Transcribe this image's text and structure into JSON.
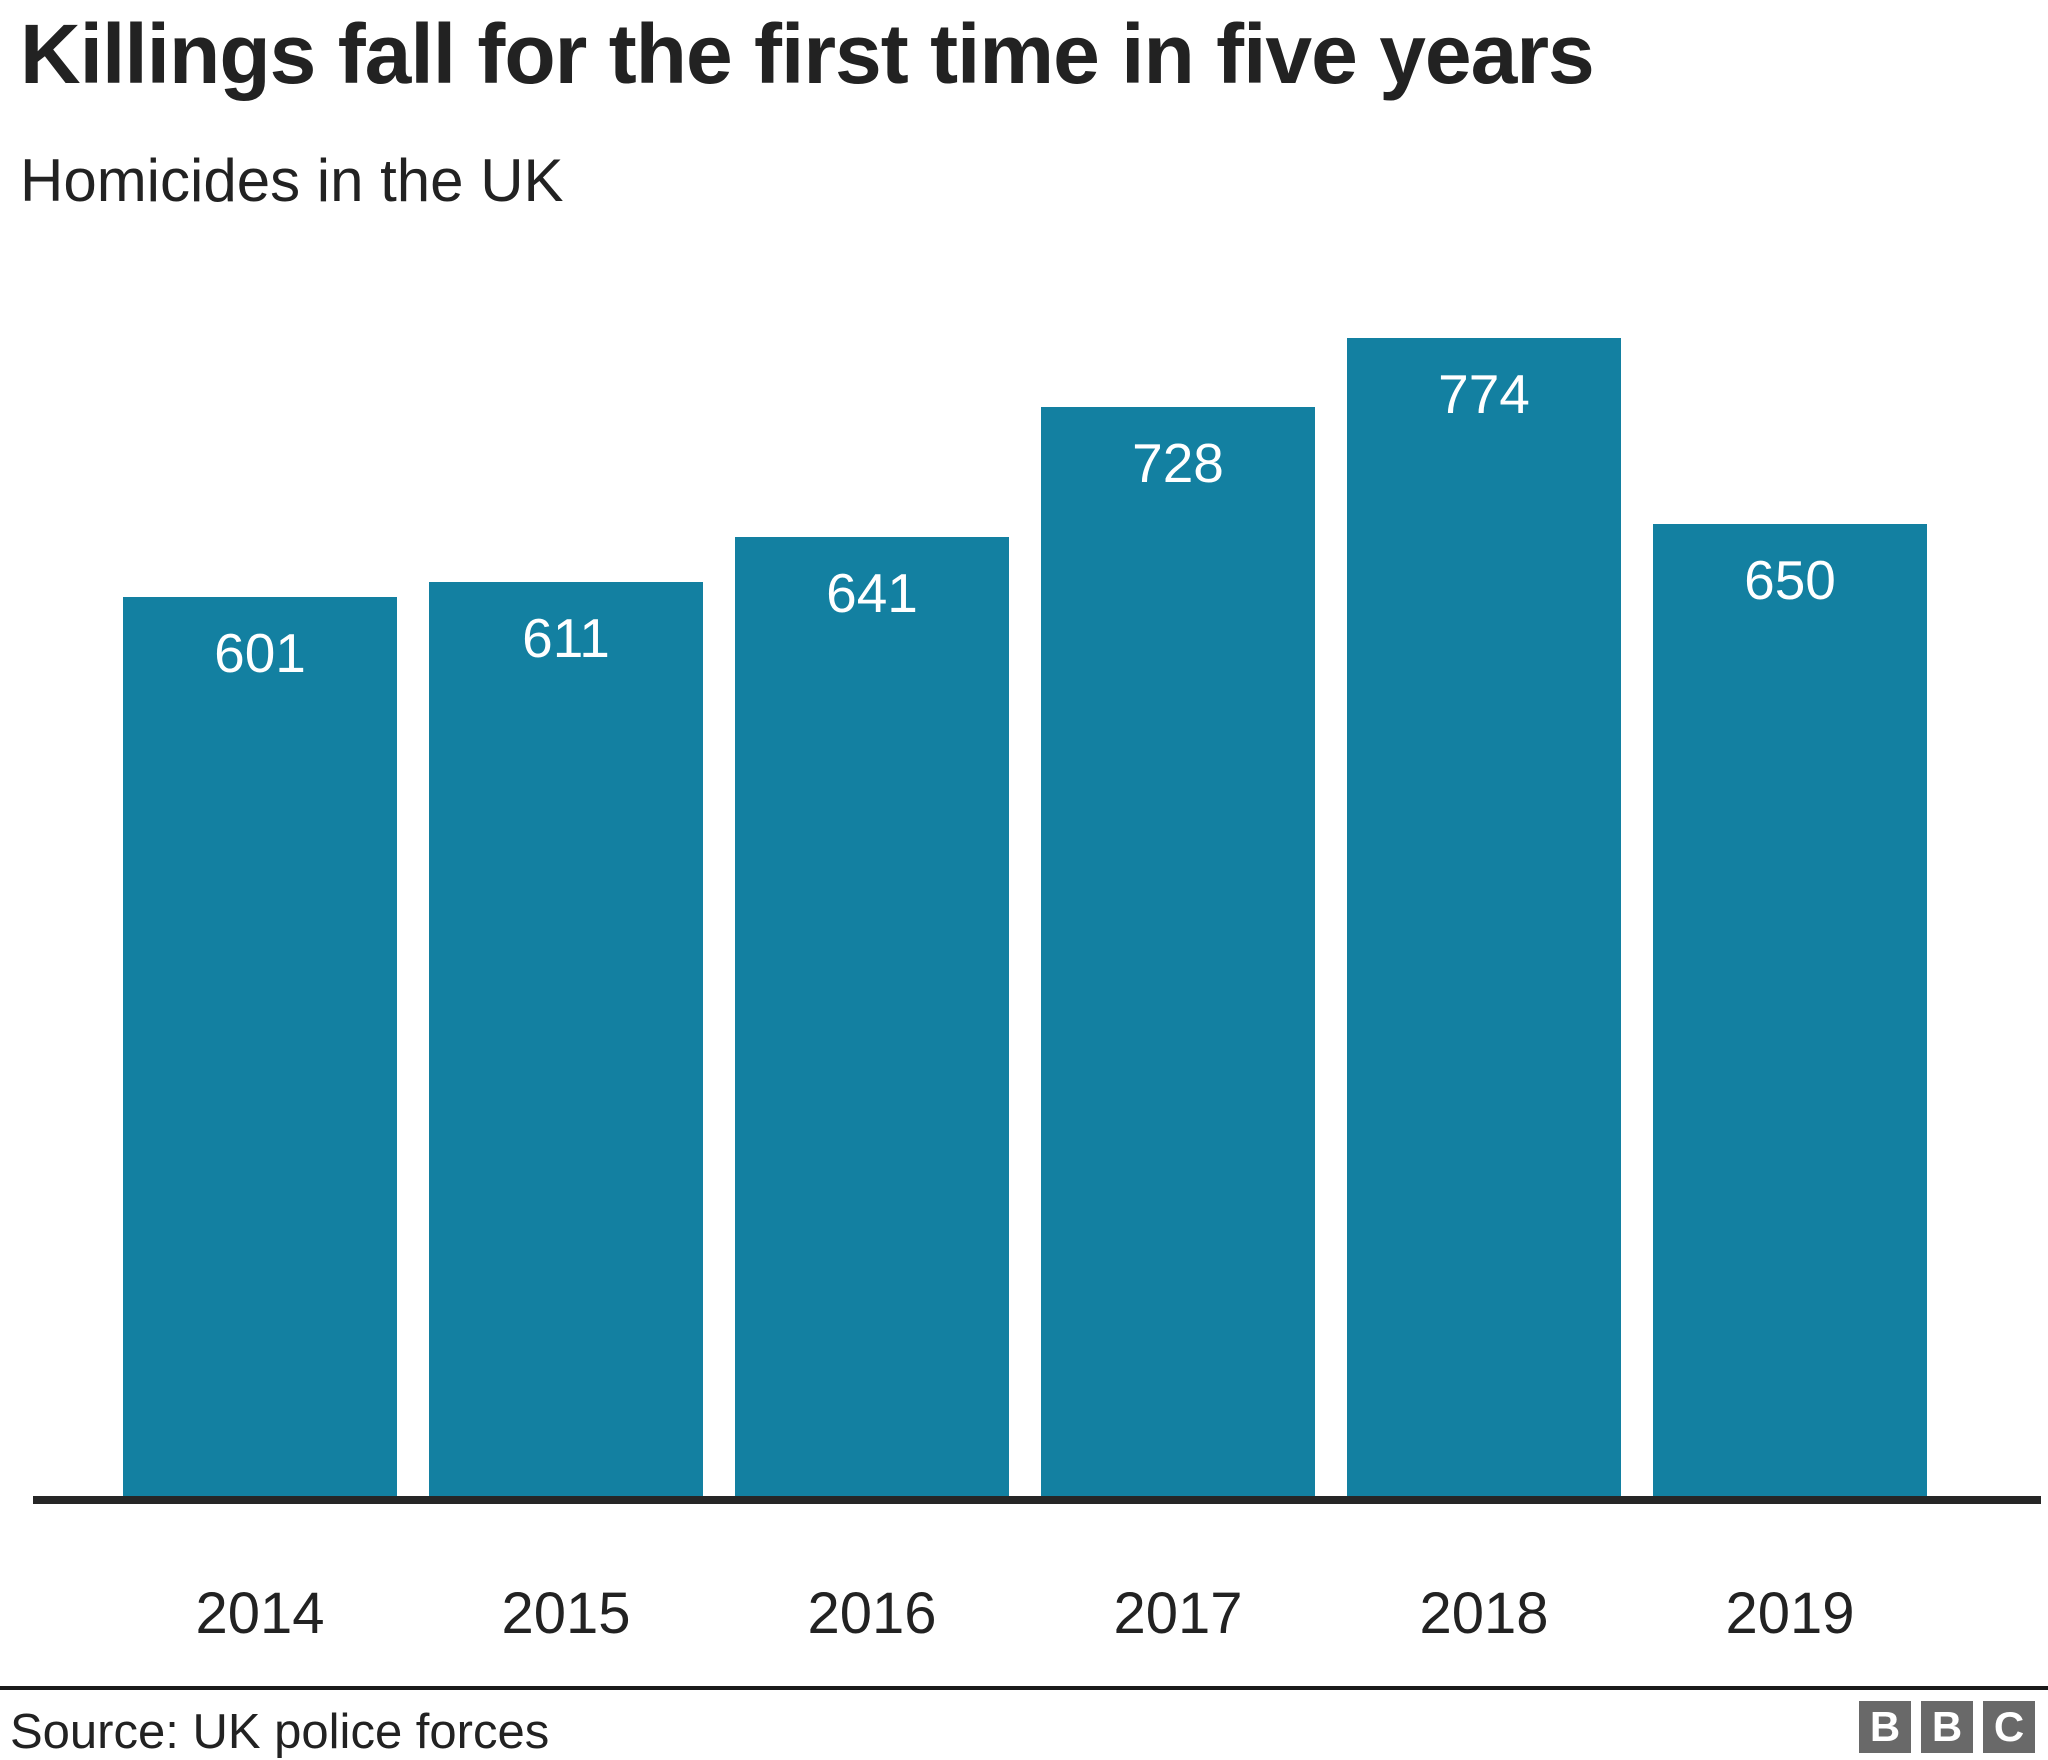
{
  "header": {
    "title": "Killings fall for the first time in five years",
    "subtitle": "Homicides in the UK"
  },
  "chart_data": {
    "type": "bar",
    "title": "Killings fall for the first time in five years",
    "subtitle": "Homicides in the UK",
    "categories": [
      "2014",
      "2015",
      "2016",
      "2017",
      "2018",
      "2019"
    ],
    "values": [
      601,
      611,
      641,
      728,
      774,
      650
    ],
    "xlabel": "",
    "ylabel": "",
    "ylim": [
      0,
      774
    ],
    "grid": false,
    "legend": false,
    "value_labels_position": "inside-top",
    "baseline_axis": "x-only"
  },
  "footer": {
    "source": "Source: UK police forces",
    "logo_letters": [
      "B",
      "B",
      "C"
    ]
  },
  "colors": {
    "bar": "#1380A1",
    "value_label": "#ffffff",
    "text": "#222222",
    "axis": "#262626",
    "divider": "#1a1a1a",
    "logo_background": "#696969",
    "logo_letter": "#ffffff",
    "background": "#ffffff"
  }
}
